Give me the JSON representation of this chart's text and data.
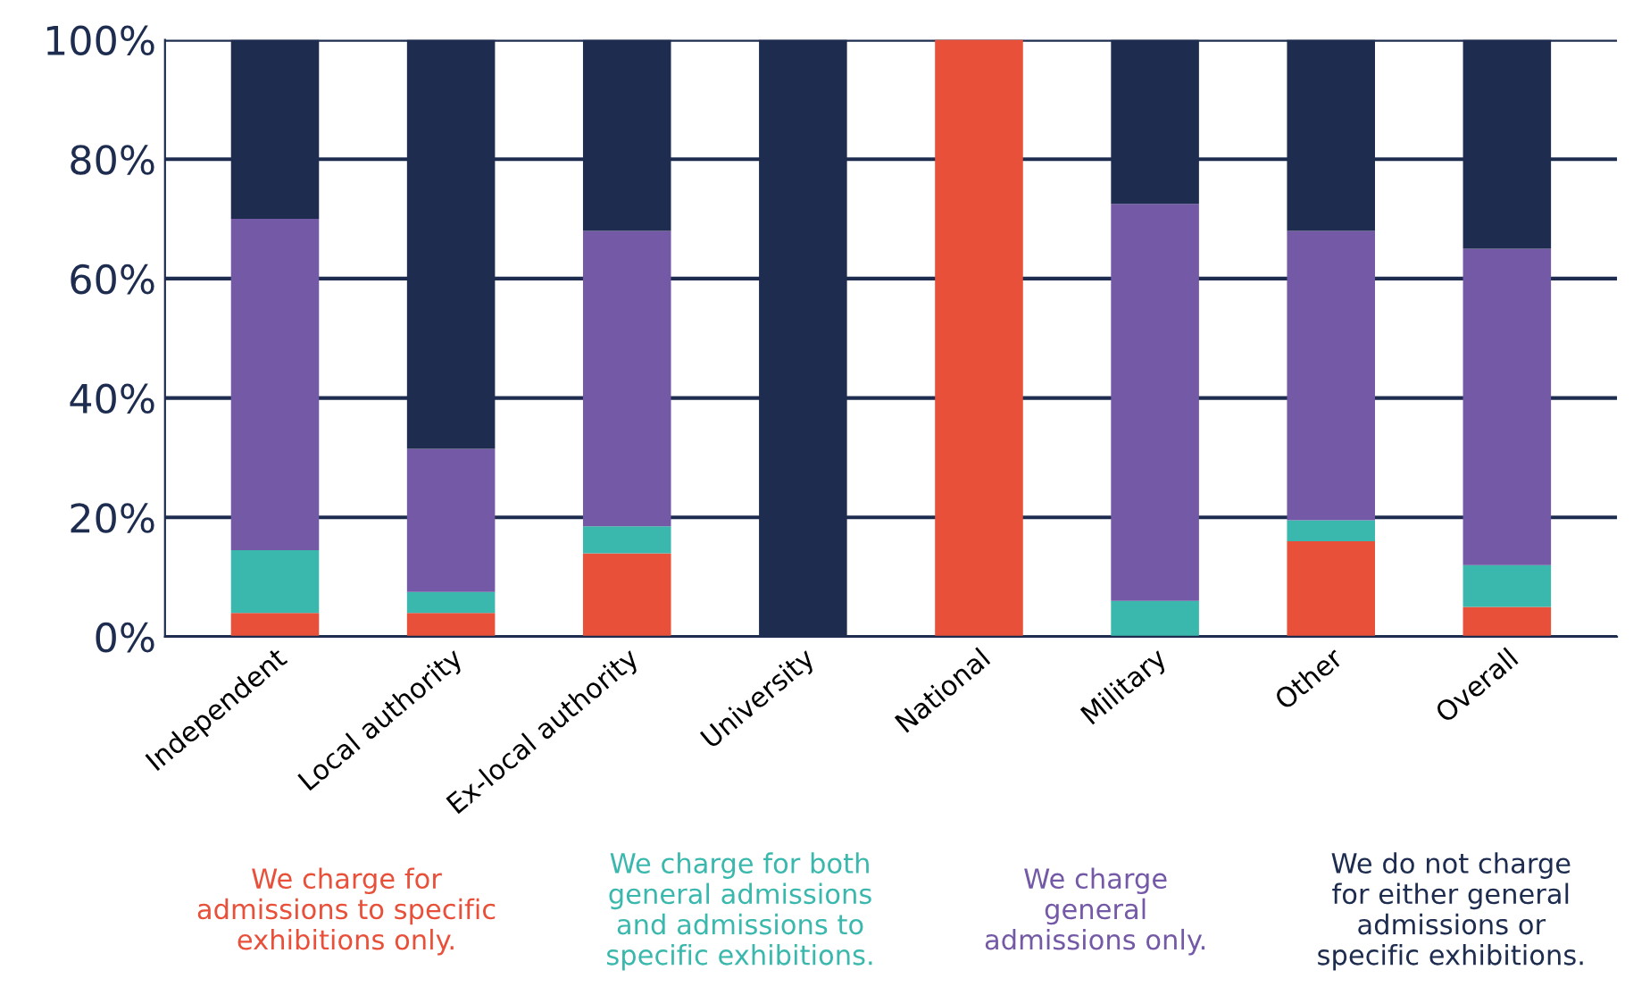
{
  "chart_data": {
    "type": "bar",
    "stacked": true,
    "categories": [
      "Independent",
      "Local authority",
      "Ex-local authority",
      "University",
      "National",
      "Military",
      "Other",
      "Overall"
    ],
    "series": [
      {
        "name": "We charge for\nadmissions to specific\nexhibitions only.",
        "color": "#e8503a",
        "values": [
          4,
          4,
          14,
          0,
          100,
          0,
          16,
          5
        ]
      },
      {
        "name": "We charge for both\ngeneral admissions\nand admissions to\nspecific exhibitions.",
        "color": "#3bb8ad",
        "values": [
          10.5,
          3.5,
          4.5,
          0,
          0,
          6,
          3.5,
          7
        ]
      },
      {
        "name": "We charge\ngeneral\nadmissions only.",
        "color": "#7359a6",
        "values": [
          55.5,
          24,
          49.5,
          0,
          0,
          66.5,
          48.5,
          53
        ]
      },
      {
        "name": "We do not charge\nfor either general\nadmissions or\nspecific exhibitions.",
        "color": "#1e2d4f",
        "values": [
          30,
          68.5,
          32,
          100,
          0,
          27.5,
          32,
          35
        ]
      }
    ],
    "ylim": [
      0,
      100
    ],
    "yticks": [
      {
        "value": 0,
        "label": "0%"
      },
      {
        "value": 20,
        "label": "20%"
      },
      {
        "value": 40,
        "label": "40%"
      },
      {
        "value": 60,
        "label": "60%"
      },
      {
        "value": 80,
        "label": "80%"
      },
      {
        "value": 100,
        "label": "100%"
      }
    ],
    "grid": "y",
    "legend": "bottom"
  }
}
